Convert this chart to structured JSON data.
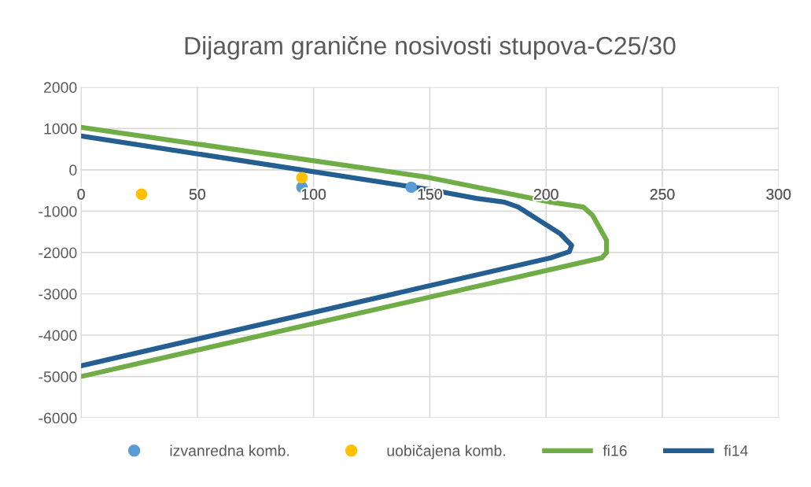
{
  "chart_data": {
    "type": "line",
    "title": "Dijagram granične nosivosti stupova-C25/30",
    "xlim": [
      0,
      300
    ],
    "xticks": [
      0,
      50,
      100,
      150,
      200,
      250,
      300
    ],
    "ylim": [
      -6000,
      2000
    ],
    "yticks": [
      -6000,
      -5000,
      -4000,
      -3000,
      -2000,
      -1000,
      0,
      1000,
      2000
    ],
    "grid": true,
    "legend": "bottom",
    "series": [
      {
        "name": "izvanredna komb.",
        "type": "scatter",
        "marker": "circle",
        "color": "#5b9bd5",
        "x": [
          95,
          142
        ],
        "values": [
          -420,
          -420
        ]
      },
      {
        "name": "uobičajena komb.",
        "type": "scatter",
        "marker": "circle",
        "color": "#ffc000",
        "x": [
          26,
          95
        ],
        "values": [
          -590,
          -190
        ]
      },
      {
        "name": "fi16",
        "color": "#70ad47",
        "x": [
          0,
          148,
          202,
          216,
          220,
          226,
          226,
          224,
          0
        ],
        "values": [
          1030,
          -170,
          -780,
          -900,
          -1100,
          -1700,
          -2000,
          -2130,
          -5000
        ]
      },
      {
        "name": "fi14",
        "color": "#255e91",
        "x": [
          0,
          148,
          170,
          182,
          188,
          206,
          211,
          210,
          202,
          0
        ],
        "values": [
          820,
          -460,
          -690,
          -780,
          -900,
          -1540,
          -1830,
          -1980,
          -2130,
          -4740
        ]
      }
    ]
  }
}
